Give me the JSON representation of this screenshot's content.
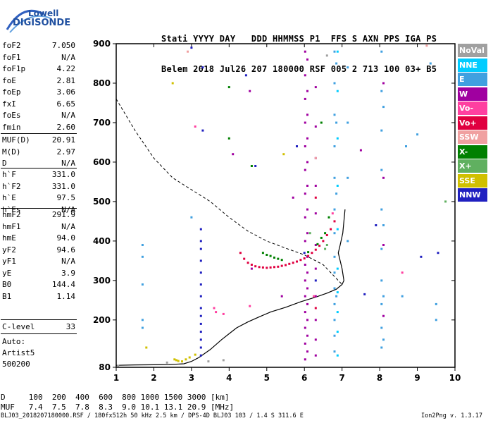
{
  "brand": {
    "line1": "Lowell",
    "line2": "DIGISONDE"
  },
  "header": {
    "row1": "Stati YYYY DAY   DDD HHMMSS P1  FFS S AXN PPS IGA PS",
    "row2": "Belem 2018 Jul26 207 180000 RSF 005 2 713 100 03+ B5"
  },
  "params_group1": [
    {
      "label": "foF2",
      "value": "7.050"
    },
    {
      "label": "foF1",
      "value": "N/A"
    },
    {
      "label": "foF1p",
      "value": "4.22"
    },
    {
      "label": "foE",
      "value": "2.81"
    },
    {
      "label": "foEp",
      "value": "3.06"
    },
    {
      "label": "fxI",
      "value": "6.65"
    },
    {
      "label": "foEs",
      "value": "N/A"
    },
    {
      "label": "fmin",
      "value": "2.60"
    }
  ],
  "params_group2": [
    {
      "label": "MUF(D)",
      "value": "20.91"
    },
    {
      "label": "M(D)",
      "value": "2.97"
    },
    {
      "label": "D",
      "value": "N/A"
    }
  ],
  "params_group3": [
    {
      "label": "h`F",
      "value": "331.0"
    },
    {
      "label": "h`F2",
      "value": "331.0"
    },
    {
      "label": "h`E",
      "value": "97.5"
    },
    {
      "label": "h`Es",
      "value": "N/A"
    }
  ],
  "params_group4": [
    {
      "label": "hmF2",
      "value": "291.9"
    },
    {
      "label": "hmF1",
      "value": "N/A"
    },
    {
      "label": "hmE",
      "value": "94.0"
    },
    {
      "label": "yF2",
      "value": "94.6"
    },
    {
      "label": "yF1",
      "value": "N/A"
    },
    {
      "label": "yE",
      "value": "3.9"
    },
    {
      "label": "B0",
      "value": "144.4"
    },
    {
      "label": "B1",
      "value": "1.14"
    }
  ],
  "clevel": {
    "label": "C-level",
    "value": "33"
  },
  "auto": {
    "line1": "Auto:",
    "line2": "Artist5",
    "line3": "500200"
  },
  "legend": [
    {
      "label": "NoVal",
      "color": "#a0a0a0"
    },
    {
      "label": "NNE",
      "color": "#00ccff"
    },
    {
      "label": "E",
      "color": "#40a0e0"
    },
    {
      "label": "W",
      "color": "#a000a0"
    },
    {
      "label": "Vo-",
      "color": "#ff40a0"
    },
    {
      "label": "Vo+",
      "color": "#e00040"
    },
    {
      "label": "SSW",
      "color": "#f0a0a0"
    },
    {
      "label": "X-",
      "color": "#008000"
    },
    {
      "label": "X+",
      "color": "#60b060"
    },
    {
      "label": "SSE",
      "color": "#d0c000"
    },
    {
      "label": "NNW",
      "color": "#2020c0"
    }
  ],
  "footer": {
    "d_row": "D     100  200  400  600  800 1000 1500 3000 [km]",
    "muf_row": "MUF   7.4  7.5  7.8  8.3  9.0 10.1 13.1 20.9 [MHz]",
    "info": "BLJ03_2018207180000.RSF / 180fx512h 50 kHz 2.5 km / DPS-4D BLJ03 103 / 1.4 S 311.6 E",
    "version": "Ion2Png v. 1.3.17"
  },
  "chart_data": {
    "type": "scatter",
    "xlim": [
      1,
      10
    ],
    "ylim": [
      80,
      900
    ],
    "xticks": [
      1,
      2,
      3,
      4,
      5,
      6,
      7,
      8,
      9,
      10
    ],
    "yticks": [
      80,
      200,
      300,
      400,
      500,
      600,
      700,
      800,
      900
    ],
    "series": [
      {
        "name": "W",
        "color": "#a000a0",
        "points": [
          [
            6.02,
            880
          ],
          [
            6.02,
            820
          ],
          [
            6.02,
            760
          ],
          [
            6.02,
            700
          ],
          [
            6.02,
            640
          ],
          [
            6.02,
            580
          ],
          [
            6.02,
            520
          ],
          [
            6.02,
            460
          ],
          [
            6.02,
            400
          ],
          [
            6.02,
            340
          ],
          [
            6.02,
            300
          ],
          [
            6.02,
            260
          ],
          [
            6.02,
            220
          ],
          [
            6.02,
            180
          ],
          [
            6.02,
            140
          ],
          [
            6.02,
            100
          ],
          [
            6.08,
            860
          ],
          [
            6.08,
            780
          ],
          [
            6.08,
            720
          ],
          [
            6.08,
            660
          ],
          [
            6.08,
            600
          ],
          [
            6.08,
            540
          ],
          [
            6.08,
            480
          ],
          [
            6.08,
            420
          ],
          [
            6.08,
            360
          ],
          [
            6.08,
            320
          ],
          [
            6.08,
            280
          ],
          [
            6.08,
            240
          ],
          [
            6.08,
            200
          ],
          [
            6.08,
            160
          ],
          [
            6.08,
            120
          ],
          [
            6.3,
            790
          ],
          [
            6.3,
            690
          ],
          [
            6.3,
            610
          ],
          [
            6.3,
            540
          ],
          [
            6.3,
            470
          ],
          [
            6.3,
            390
          ],
          [
            6.3,
            330
          ],
          [
            6.3,
            260
          ],
          [
            6.3,
            200
          ],
          [
            6.3,
            150
          ],
          [
            6.3,
            110
          ],
          [
            8.1,
            800
          ],
          [
            8.1,
            560
          ],
          [
            8.1,
            390
          ],
          [
            8.1,
            210
          ],
          [
            4.55,
            780
          ],
          [
            4.1,
            620
          ],
          [
            4.6,
            330
          ],
          [
            5.7,
            510
          ],
          [
            7.5,
            630
          ],
          [
            5.4,
            260
          ]
        ]
      },
      {
        "name": "Vo+",
        "color": "#e00040",
        "points": [
          [
            4.3,
            370
          ],
          [
            4.4,
            355
          ],
          [
            4.5,
            345
          ],
          [
            4.6,
            340
          ],
          [
            4.7,
            336
          ],
          [
            4.8,
            334
          ],
          [
            4.9,
            333
          ],
          [
            5.0,
            332
          ],
          [
            5.1,
            333
          ],
          [
            5.2,
            334
          ],
          [
            5.3,
            335
          ],
          [
            5.4,
            337
          ],
          [
            5.5,
            339
          ],
          [
            5.6,
            342
          ],
          [
            5.7,
            345
          ],
          [
            5.8,
            348
          ],
          [
            5.9,
            352
          ],
          [
            6.0,
            356
          ],
          [
            6.1,
            362
          ],
          [
            6.2,
            370
          ],
          [
            6.3,
            378
          ],
          [
            6.4,
            388
          ],
          [
            6.5,
            400
          ],
          [
            6.6,
            415
          ],
          [
            6.7,
            430
          ],
          [
            6.8,
            450
          ],
          [
            6.3,
            230
          ],
          [
            6.3,
            510
          ]
        ]
      },
      {
        "name": "X-",
        "color": "#008000",
        "points": [
          [
            4.9,
            370
          ],
          [
            5.0,
            365
          ],
          [
            5.1,
            362
          ],
          [
            5.2,
            358
          ],
          [
            5.3,
            355
          ],
          [
            5.4,
            352
          ],
          [
            6.1,
            372
          ],
          [
            6.35,
            392
          ],
          [
            6.45,
            408
          ],
          [
            6.55,
            420
          ],
          [
            4.0,
            790
          ],
          [
            4.0,
            660
          ],
          [
            4.6,
            590
          ],
          [
            6.45,
            700
          ],
          [
            6.65,
            460
          ]
        ]
      },
      {
        "name": "E",
        "color": "#40a0e0",
        "points": [
          [
            6.8,
            880
          ],
          [
            6.8,
            800
          ],
          [
            6.8,
            720
          ],
          [
            6.8,
            640
          ],
          [
            6.8,
            560
          ],
          [
            6.8,
            480
          ],
          [
            6.8,
            420
          ],
          [
            6.8,
            360
          ],
          [
            6.8,
            320
          ],
          [
            6.8,
            280
          ],
          [
            6.8,
            240
          ],
          [
            6.8,
            200
          ],
          [
            6.8,
            160
          ],
          [
            6.8,
            120
          ],
          [
            6.85,
            850
          ],
          [
            6.85,
            700
          ],
          [
            6.85,
            520
          ],
          [
            6.85,
            260
          ],
          [
            7.15,
            840
          ],
          [
            7.15,
            700
          ],
          [
            7.15,
            560
          ],
          [
            7.15,
            400
          ],
          [
            8.05,
            880
          ],
          [
            8.05,
            780
          ],
          [
            8.05,
            680
          ],
          [
            8.05,
            580
          ],
          [
            8.05,
            480
          ],
          [
            8.05,
            380
          ],
          [
            8.05,
            300
          ],
          [
            8.05,
            240
          ],
          [
            8.05,
            180
          ],
          [
            8.05,
            130
          ],
          [
            8.1,
            740
          ],
          [
            8.1,
            440
          ],
          [
            8.1,
            260
          ],
          [
            8.1,
            150
          ],
          [
            1.7,
            390
          ],
          [
            1.7,
            360
          ],
          [
            1.7,
            290
          ],
          [
            1.7,
            200
          ],
          [
            1.7,
            180
          ],
          [
            9.35,
            850
          ],
          [
            9.5,
            240
          ],
          [
            9.5,
            200
          ],
          [
            8.7,
            640
          ],
          [
            9.0,
            670
          ],
          [
            3.0,
            460
          ],
          [
            8.6,
            260
          ]
        ]
      },
      {
        "name": "NNE",
        "color": "#00ccff",
        "points": [
          [
            6.88,
            880
          ],
          [
            6.88,
            780
          ],
          [
            6.88,
            660
          ],
          [
            6.88,
            540
          ],
          [
            6.88,
            430
          ],
          [
            6.88,
            330
          ],
          [
            6.88,
            270
          ],
          [
            6.88,
            220
          ],
          [
            6.88,
            170
          ],
          [
            6.88,
            110
          ]
        ]
      },
      {
        "name": "NNW",
        "color": "#2020c0",
        "points": [
          [
            3.25,
            430
          ],
          [
            3.25,
            400
          ],
          [
            3.25,
            380
          ],
          [
            3.25,
            350
          ],
          [
            3.25,
            320
          ],
          [
            3.25,
            290
          ],
          [
            3.25,
            260
          ],
          [
            3.25,
            230
          ],
          [
            3.25,
            210
          ],
          [
            3.25,
            190
          ],
          [
            3.25,
            170
          ],
          [
            3.25,
            150
          ],
          [
            3.25,
            130
          ],
          [
            3.25,
            110
          ],
          [
            3.3,
            840
          ],
          [
            3.3,
            680
          ],
          [
            3.0,
            890
          ],
          [
            4.45,
            820
          ],
          [
            4.7,
            590
          ],
          [
            5.8,
            640
          ],
          [
            9.1,
            360
          ],
          [
            9.55,
            370
          ],
          [
            6.0,
            370
          ],
          [
            7.9,
            440
          ],
          [
            6.3,
            300
          ],
          [
            7.6,
            265
          ]
        ]
      },
      {
        "name": "Vo-",
        "color": "#ff40a0",
        "points": [
          [
            3.65,
            220
          ],
          [
            3.85,
            215
          ],
          [
            4.55,
            235
          ],
          [
            8.6,
            320
          ],
          [
            6.25,
            260
          ],
          [
            3.1,
            690
          ],
          [
            3.6,
            230
          ],
          [
            6.75,
            470
          ]
        ]
      },
      {
        "name": "SSW",
        "color": "#f0a0a0",
        "points": [
          [
            2.9,
            880
          ],
          [
            9.25,
            895
          ],
          [
            6.3,
            610
          ]
        ]
      },
      {
        "name": "X+",
        "color": "#60b060",
        "points": [
          [
            6.55,
            380
          ],
          [
            6.6,
            390
          ],
          [
            6.15,
            420
          ],
          [
            9.75,
            500
          ]
        ]
      },
      {
        "name": "SSE",
        "color": "#d0c000",
        "points": [
          [
            2.55,
            100
          ],
          [
            2.6,
            98
          ],
          [
            2.65,
            96
          ],
          [
            2.75,
            95
          ],
          [
            2.85,
            100
          ],
          [
            2.95,
            105
          ],
          [
            3.1,
            112
          ],
          [
            1.8,
            130
          ],
          [
            2.5,
            800
          ],
          [
            5.45,
            620
          ]
        ]
      },
      {
        "name": "NoVal",
        "color": "#a0a0a0",
        "points": [
          [
            1.05,
            84
          ],
          [
            2.35,
            92
          ],
          [
            3.45,
            95
          ],
          [
            3.85,
            98
          ],
          [
            6.6,
            870
          ]
        ]
      }
    ],
    "profile_curve": [
      [
        1,
        85
      ],
      [
        1.5,
        86
      ],
      [
        2.0,
        86.5
      ],
      [
        2.4,
        87
      ],
      [
        2.8,
        89
      ],
      [
        3.0,
        95
      ],
      [
        3.2,
        105
      ],
      [
        3.5,
        125
      ],
      [
        3.8,
        150
      ],
      [
        4.0,
        165
      ],
      [
        4.2,
        180
      ],
      [
        4.5,
        195
      ],
      [
        4.8,
        208
      ],
      [
        5.1,
        220
      ],
      [
        5.5,
        232
      ],
      [
        5.9,
        246
      ],
      [
        6.3,
        258
      ],
      [
        6.6,
        268
      ],
      [
        6.85,
        278
      ],
      [
        7.0,
        290
      ],
      [
        7.05,
        300
      ],
      [
        7.0,
        330
      ],
      [
        6.95,
        350
      ],
      [
        6.9,
        370
      ],
      [
        6.95,
        390
      ],
      [
        7.02,
        420
      ],
      [
        7.05,
        450
      ],
      [
        7.08,
        480
      ]
    ],
    "dashed_curve": [
      [
        1,
        760
      ],
      [
        1.5,
        680
      ],
      [
        2.0,
        610
      ],
      [
        2.5,
        560
      ],
      [
        3.0,
        530
      ],
      [
        3.5,
        500
      ],
      [
        4.0,
        460
      ],
      [
        4.5,
        425
      ],
      [
        5.0,
        400
      ],
      [
        5.5,
        382
      ],
      [
        6.0,
        365
      ],
      [
        6.5,
        340
      ],
      [
        6.8,
        310
      ],
      [
        7.0,
        290
      ]
    ]
  }
}
